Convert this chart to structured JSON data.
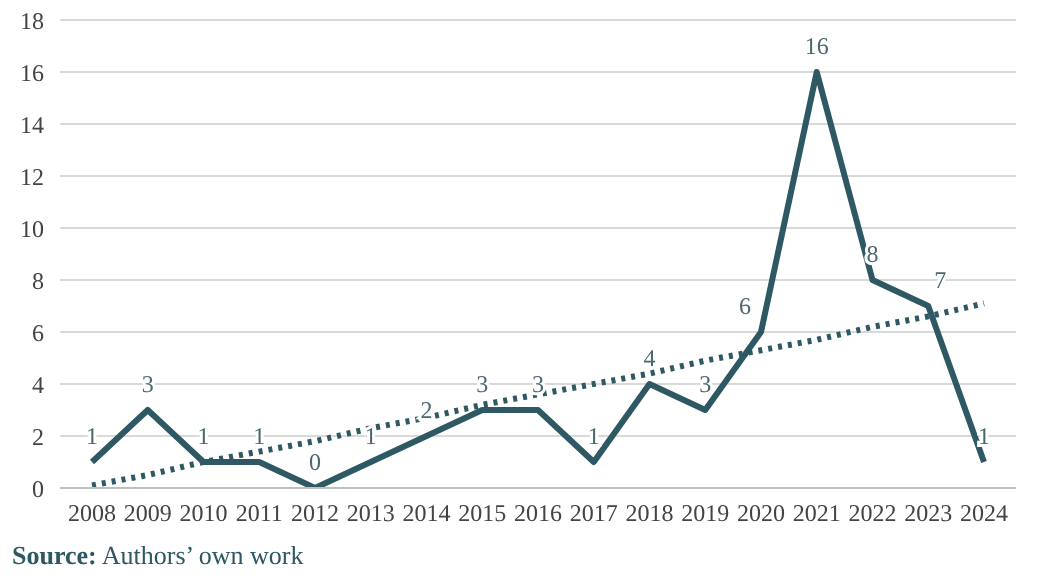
{
  "chart_data": {
    "type": "line",
    "categories": [
      "2008",
      "2009",
      "2010",
      "2011",
      "2012",
      "2013",
      "2014",
      "2015",
      "2016",
      "2017",
      "2018",
      "2019",
      "2020",
      "2021",
      "2022",
      "2023",
      "2024"
    ],
    "series": [
      {
        "color": "#2e5863",
        "values": [
          1,
          3,
          1,
          1,
          0,
          1,
          2,
          3,
          3,
          1,
          4,
          3,
          6,
          16,
          8,
          7,
          1
        ],
        "value_labels": [
          "1",
          "3",
          "1",
          "1",
          "0",
          "1",
          "2",
          "3",
          "3",
          "1",
          "4",
          "3",
          "6",
          "16",
          "8",
          "7",
          "1"
        ]
      },
      {
        "type": "line",
        "color": "#2e5863",
        "line_style": "dotted",
        "values": [
          0.1,
          0.5,
          1.0,
          1.4,
          1.8,
          2.3,
          2.7,
          3.2,
          3.6,
          4.0,
          4.4,
          4.9,
          5.3,
          5.7,
          6.2,
          6.6,
          7.1
        ]
      }
    ],
    "ylim": [
      0,
      18
    ],
    "yticks": [
      0,
      2,
      4,
      6,
      8,
      10,
      12,
      14,
      16,
      18
    ],
    "grid": "y",
    "legend": false,
    "marker": "none",
    "line_style": "solid",
    "annotations": [
      "Source: Authors’ own work"
    ]
  }
}
